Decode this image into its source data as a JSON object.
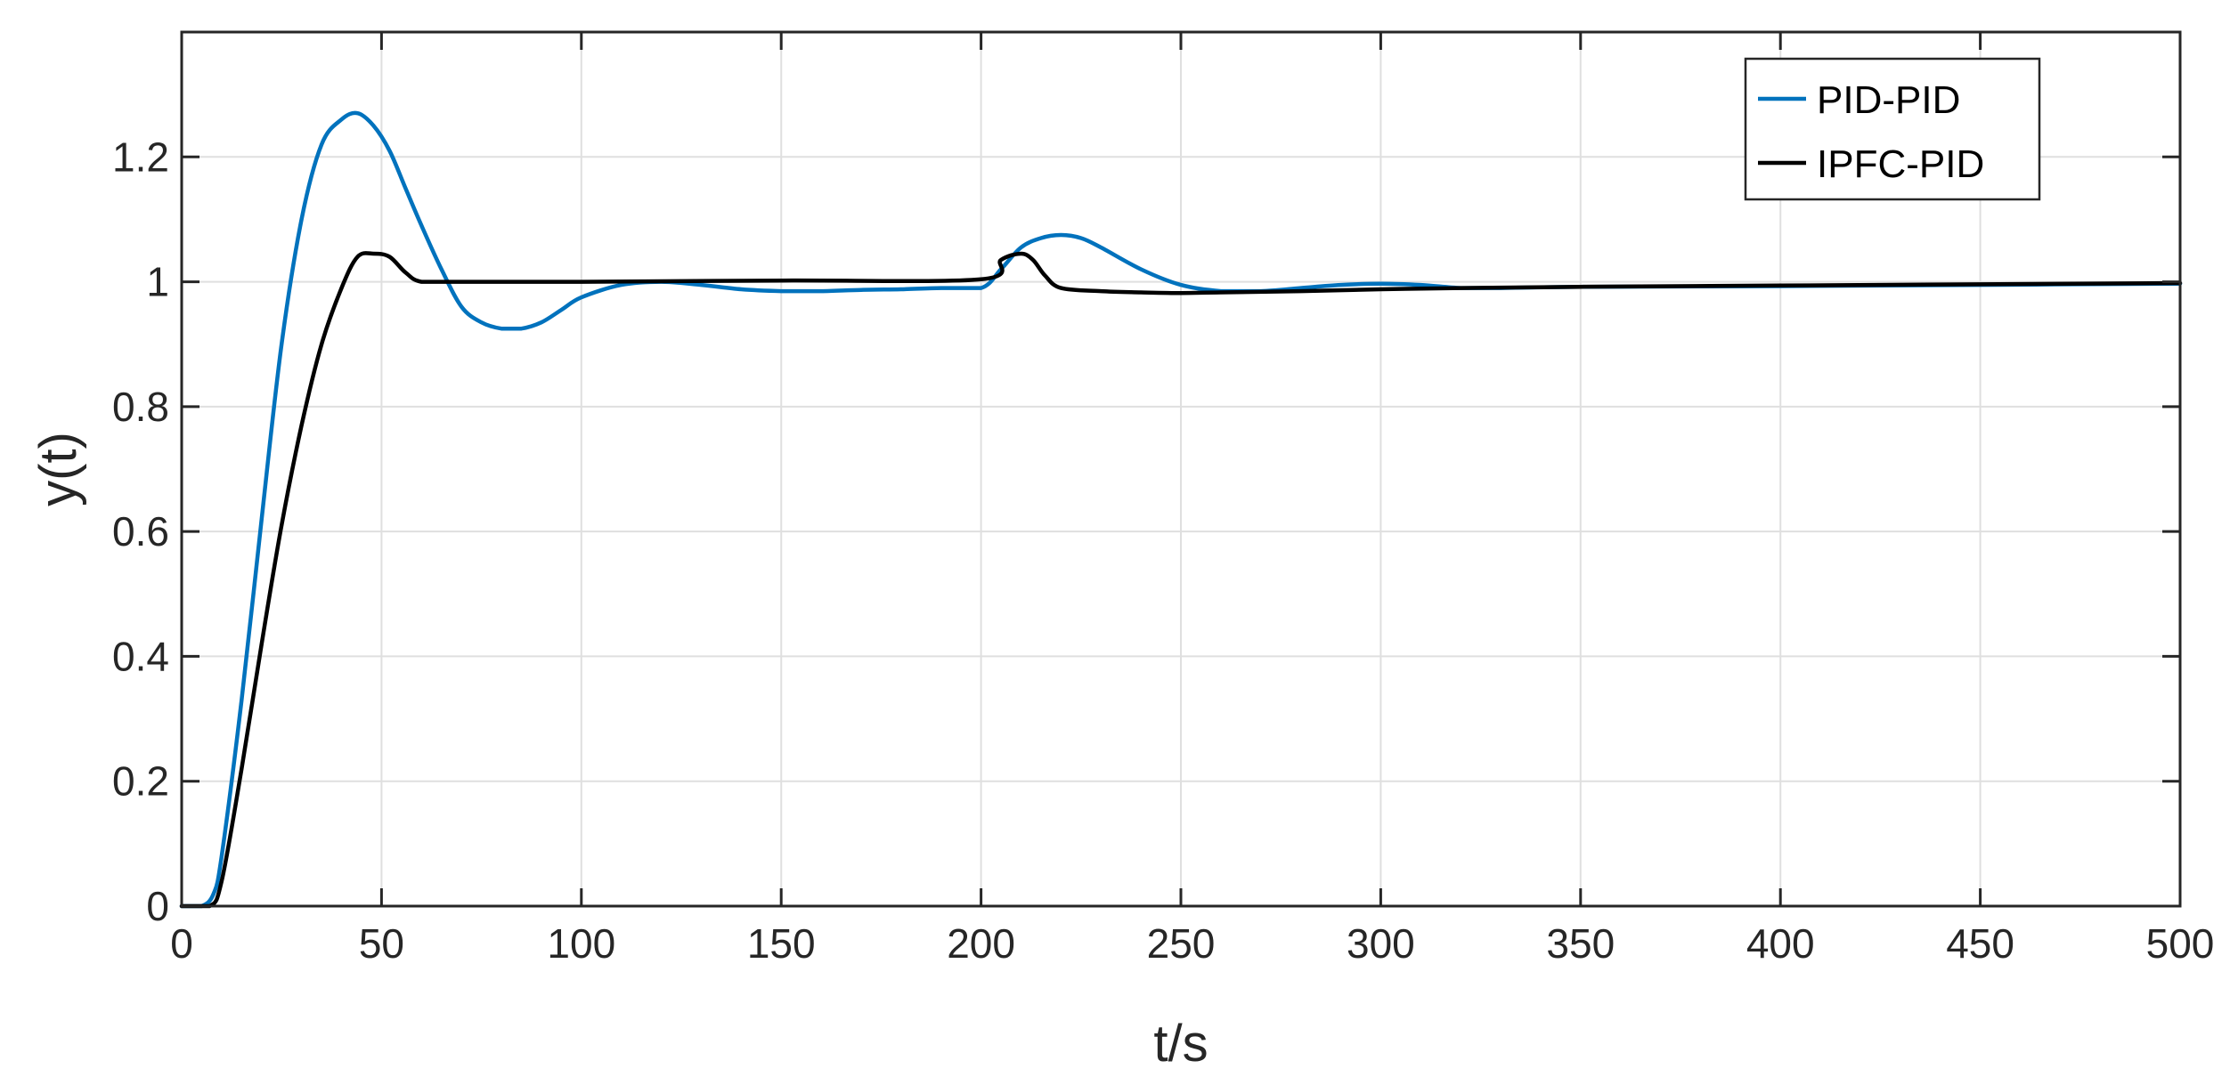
{
  "chart_data": {
    "type": "line",
    "title": "",
    "xlabel": "t/s",
    "ylabel": "y(t)",
    "xlim": [
      0,
      500
    ],
    "ylim": [
      0,
      1.4
    ],
    "xticks": [
      0,
      50,
      100,
      150,
      200,
      250,
      300,
      350,
      400,
      450,
      500
    ],
    "yticks": [
      0,
      0.2,
      0.4,
      0.6,
      0.8,
      1,
      1.2
    ],
    "xtick_labels": [
      "0",
      "50",
      "100",
      "150",
      "200",
      "250",
      "300",
      "350",
      "400",
      "450",
      "500"
    ],
    "ytick_labels": [
      "0",
      "0.2",
      "0.4",
      "0.6",
      "0.8",
      "1",
      "1.2"
    ],
    "grid": true,
    "legend": {
      "position": "top-right"
    },
    "series": [
      {
        "name": "PID-PID",
        "color": "#0072bd",
        "x": [
          0,
          5,
          8,
          10,
          15,
          20,
          25,
          30,
          35,
          40,
          44,
          48,
          52,
          56,
          60,
          65,
          70,
          75,
          80,
          85,
          90,
          95,
          100,
          110,
          120,
          130,
          140,
          150,
          160,
          170,
          180,
          190,
          200,
          205,
          210,
          215,
          220,
          225,
          230,
          240,
          250,
          260,
          270,
          280,
          290,
          300,
          310,
          320,
          330,
          350,
          400,
          450,
          500
        ],
        "y": [
          0,
          0,
          0.02,
          0.08,
          0.33,
          0.62,
          0.9,
          1.1,
          1.22,
          1.26,
          1.27,
          1.25,
          1.21,
          1.15,
          1.09,
          1.02,
          0.96,
          0.935,
          0.925,
          0.925,
          0.935,
          0.955,
          0.975,
          0.995,
          1.0,
          0.995,
          0.988,
          0.985,
          0.985,
          0.987,
          0.988,
          0.99,
          0.99,
          1.02,
          1.055,
          1.07,
          1.075,
          1.07,
          1.055,
          1.02,
          0.995,
          0.985,
          0.985,
          0.99,
          0.995,
          0.997,
          0.995,
          0.99,
          0.99,
          0.992,
          0.993,
          0.995,
          0.997
        ]
      },
      {
        "name": "IPFC-PID",
        "color": "#000000",
        "x": [
          0,
          7,
          10,
          15,
          20,
          25,
          30,
          35,
          40,
          44,
          48,
          52,
          56,
          60,
          70,
          100,
          150,
          200,
          205,
          210,
          213,
          216,
          220,
          230,
          240,
          250,
          260,
          280,
          300,
          320,
          350,
          400,
          450,
          500
        ],
        "y": [
          0,
          0,
          0.04,
          0.22,
          0.42,
          0.61,
          0.77,
          0.9,
          0.99,
          1.04,
          1.045,
          1.04,
          1.015,
          1.0,
          1.0,
          1.0,
          1.002,
          1.004,
          1.035,
          1.045,
          1.035,
          1.01,
          0.99,
          0.985,
          0.983,
          0.982,
          0.983,
          0.985,
          0.988,
          0.99,
          0.992,
          0.994,
          0.996,
          0.998
        ]
      }
    ]
  }
}
